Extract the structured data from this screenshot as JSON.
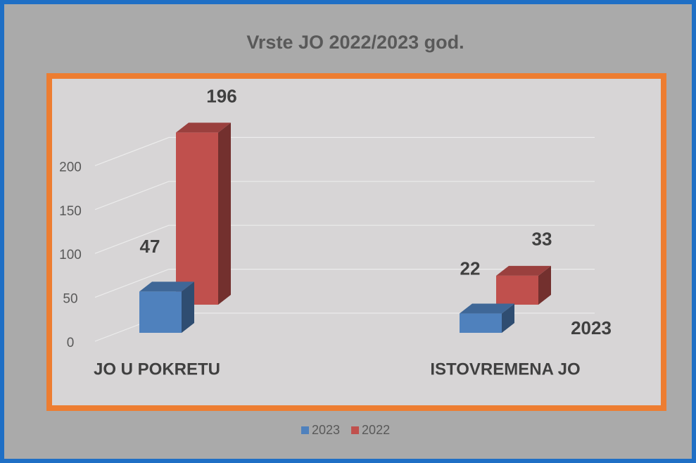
{
  "chart_data": {
    "type": "bar3d",
    "title": "Vrste JO 2022/2023 god.",
    "categories": [
      "JO U POKRETU",
      "ISTOVREMENA JO"
    ],
    "series": [
      {
        "name": "2023",
        "color": "#4f81bd",
        "values": [
          47,
          22
        ]
      },
      {
        "name": "2022",
        "color": "#c0504d",
        "values": [
          196,
          33
        ]
      }
    ],
    "ylim": [
      0,
      250
    ],
    "yticks": [
      0,
      50,
      100,
      150,
      200
    ],
    "grid": true,
    "annotations": [
      "2023"
    ],
    "legend": "bottom"
  }
}
